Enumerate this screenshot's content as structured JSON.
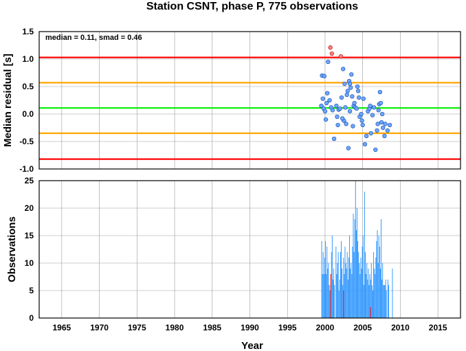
{
  "chart_data": [
    {
      "type": "scatter",
      "title": "Station CSNT, phase P, 775 observations",
      "annotation": "median = 0.11, smad = 0.46",
      "ylabel": "Median residual [s]",
      "xlim": [
        1962,
        2018
      ],
      "ylim": [
        -1.0,
        1.5
      ],
      "yticks": [
        "-1.0",
        "-0.5",
        "0.0",
        "0.5",
        "1.0",
        "1.5"
      ],
      "grid": true,
      "reference_lines": [
        {
          "y": 1.03,
          "color": "#ff0000"
        },
        {
          "y": 0.57,
          "color": "#ffa500"
        },
        {
          "y": 0.11,
          "color": "#00ee00"
        },
        {
          "y": -0.35,
          "color": "#ffa500"
        },
        {
          "y": -0.82,
          "color": "#ff0000"
        }
      ],
      "point_color": "#6ea8ff",
      "outlier_color": "#ff7f7f",
      "points": [
        [
          1999.6,
          0.7
        ],
        [
          1999.9,
          0.69
        ],
        [
          1999.7,
          0.28
        ],
        [
          1999.5,
          0.15
        ],
        [
          1999.8,
          0.1
        ],
        [
          2000.0,
          0.05
        ],
        [
          2000.1,
          -0.1
        ],
        [
          2000.2,
          0.2
        ],
        [
          2000.3,
          0.38
        ],
        [
          2000.4,
          0.95
        ],
        [
          2000.6,
          0.25
        ],
        [
          2000.8,
          0.12
        ],
        [
          2001.0,
          0.07
        ],
        [
          2001.2,
          -0.45
        ],
        [
          2001.5,
          0.15
        ],
        [
          2001.6,
          -0.05
        ],
        [
          2001.8,
          0.08
        ],
        [
          2002.0,
          0.1
        ],
        [
          2002.2,
          0.3
        ],
        [
          2002.4,
          0.82
        ],
        [
          2002.5,
          -0.12
        ],
        [
          2002.6,
          0.55
        ],
        [
          2002.7,
          0.12
        ],
        [
          2002.8,
          -0.18
        ],
        [
          2002.9,
          0.35
        ],
        [
          2003.0,
          0.42
        ],
        [
          2003.1,
          -0.62
        ],
        [
          2003.2,
          0.6
        ],
        [
          2003.3,
          0.55
        ],
        [
          2003.4,
          0.48
        ],
        [
          2003.5,
          0.72
        ],
        [
          2003.6,
          0.32
        ],
        [
          2003.7,
          -0.22
        ],
        [
          2003.8,
          0.15
        ],
        [
          2003.9,
          0.2
        ],
        [
          2004.0,
          0.12
        ],
        [
          2004.2,
          0.1
        ],
        [
          2004.4,
          0.42
        ],
        [
          2004.5,
          0.3
        ],
        [
          2004.6,
          -0.05
        ],
        [
          2004.8,
          0.0
        ],
        [
          2004.9,
          -0.12
        ],
        [
          2005.0,
          -0.2
        ],
        [
          2005.1,
          0.28
        ],
        [
          2005.3,
          -0.55
        ],
        [
          2005.5,
          -0.4
        ],
        [
          2005.7,
          0.05
        ],
        [
          2005.9,
          0.1
        ],
        [
          2006.1,
          -0.35
        ],
        [
          2006.3,
          -0.02
        ],
        [
          2006.5,
          0.12
        ],
        [
          2006.7,
          -0.65
        ],
        [
          2006.9,
          -0.3
        ],
        [
          2007.0,
          -0.18
        ],
        [
          2007.1,
          0.07
        ],
        [
          2007.2,
          0.18
        ],
        [
          2007.3,
          0.4
        ],
        [
          2007.4,
          0.2
        ],
        [
          2007.6,
          0.0
        ],
        [
          2007.7,
          -0.25
        ],
        [
          2007.9,
          -0.4
        ],
        [
          2008.0,
          -0.18
        ],
        [
          2008.3,
          -0.3
        ],
        [
          2008.6,
          -0.2
        ],
        [
          2007.5,
          -0.15
        ],
        [
          2006.0,
          0.15
        ],
        [
          2004.3,
          0.5
        ],
        [
          2003.3,
          0.05
        ],
        [
          2001.7,
          -0.2
        ],
        [
          2002.3,
          -0.08
        ]
      ],
      "outliers": [
        [
          2000.7,
          1.21
        ],
        [
          2000.9,
          1.1
        ],
        [
          2002.1,
          1.05
        ]
      ]
    },
    {
      "type": "bar",
      "xlabel": "Year",
      "ylabel": "Observations",
      "xlim": [
        1962,
        2018
      ],
      "ylim": [
        0,
        25
      ],
      "xticks": [
        "1965",
        "1970",
        "1975",
        "1980",
        "1985",
        "1990",
        "1995",
        "2000",
        "2005",
        "2010",
        "2015"
      ],
      "yticks": [
        "0",
        "5",
        "10",
        "15",
        "20",
        "25"
      ],
      "grid": true,
      "bar_color": "#3399ff",
      "highlight_color": "#ff0000",
      "bars": [
        [
          1999.55,
          14
        ],
        [
          1999.65,
          8
        ],
        [
          1999.75,
          12
        ],
        [
          1999.85,
          8
        ],
        [
          1999.95,
          11
        ],
        [
          2000.05,
          14
        ],
        [
          2000.15,
          8
        ],
        [
          2000.25,
          13
        ],
        [
          2000.35,
          9
        ],
        [
          2000.45,
          10
        ],
        [
          2000.55,
          6
        ],
        [
          2000.65,
          5
        ],
        [
          2000.75,
          6
        ],
        [
          2000.85,
          12
        ],
        [
          2000.95,
          15
        ],
        [
          2001.05,
          7
        ],
        [
          2001.15,
          9
        ],
        [
          2001.25,
          6
        ],
        [
          2001.45,
          13
        ],
        [
          2001.55,
          8
        ],
        [
          2001.65,
          10
        ],
        [
          2001.75,
          12
        ],
        [
          2001.85,
          5
        ],
        [
          2001.95,
          7
        ],
        [
          2002.05,
          12
        ],
        [
          2002.15,
          14
        ],
        [
          2002.25,
          9
        ],
        [
          2002.35,
          6
        ],
        [
          2002.45,
          11
        ],
        [
          2002.55,
          8
        ],
        [
          2002.65,
          13
        ],
        [
          2002.75,
          10
        ],
        [
          2002.85,
          9
        ],
        [
          2002.95,
          12
        ],
        [
          2003.05,
          7
        ],
        [
          2003.15,
          11
        ],
        [
          2003.25,
          15
        ],
        [
          2003.35,
          9
        ],
        [
          2003.45,
          10
        ],
        [
          2003.55,
          8
        ],
        [
          2003.65,
          13
        ],
        [
          2003.75,
          19
        ],
        [
          2003.85,
          12
        ],
        [
          2003.95,
          18
        ],
        [
          2004.05,
          25
        ],
        [
          2004.15,
          16
        ],
        [
          2004.25,
          20
        ],
        [
          2004.35,
          14
        ],
        [
          2004.45,
          12
        ],
        [
          2004.55,
          10
        ],
        [
          2004.65,
          8
        ],
        [
          2004.75,
          11
        ],
        [
          2004.85,
          9
        ],
        [
          2004.95,
          13
        ],
        [
          2005.05,
          15
        ],
        [
          2005.15,
          6
        ],
        [
          2005.25,
          23
        ],
        [
          2005.35,
          12
        ],
        [
          2005.45,
          8
        ],
        [
          2005.55,
          10
        ],
        [
          2005.65,
          7
        ],
        [
          2005.75,
          9
        ],
        [
          2005.85,
          6
        ],
        [
          2005.95,
          8
        ],
        [
          2006.05,
          7
        ],
        [
          2006.15,
          10
        ],
        [
          2006.25,
          6
        ],
        [
          2006.35,
          5
        ],
        [
          2006.45,
          12
        ],
        [
          2006.55,
          9
        ],
        [
          2006.65,
          8
        ],
        [
          2006.75,
          11
        ],
        [
          2006.85,
          14
        ],
        [
          2006.95,
          16
        ],
        [
          2007.05,
          10
        ],
        [
          2007.15,
          15
        ],
        [
          2007.25,
          13
        ],
        [
          2007.35,
          9
        ],
        [
          2007.45,
          18
        ],
        [
          2007.55,
          7
        ],
        [
          2007.65,
          10
        ],
        [
          2007.75,
          6
        ],
        [
          2007.85,
          6
        ],
        [
          2007.95,
          6
        ],
        [
          2008.05,
          7
        ],
        [
          2008.15,
          5
        ],
        [
          2008.35,
          7
        ],
        [
          2008.45,
          6
        ],
        [
          2008.95,
          9
        ]
      ],
      "highlight_bars": [
        [
          2000.75,
          8
        ],
        [
          2002.45,
          5
        ],
        [
          2006.05,
          2
        ]
      ]
    }
  ]
}
